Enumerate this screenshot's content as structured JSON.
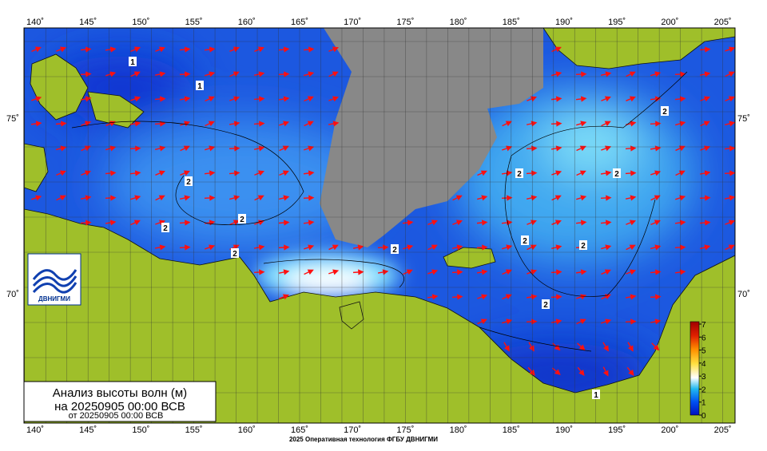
{
  "map": {
    "longitude_labels": [
      "140˚",
      "145˚",
      "150˚",
      "155˚",
      "160˚",
      "165˚",
      "170˚",
      "175˚",
      "180˚",
      "185˚",
      "190˚",
      "195˚",
      "200˚",
      "205˚"
    ],
    "latitude_labels": [
      "75˚",
      "70˚"
    ],
    "title": {
      "line1": "Анализ высоты волн (м)",
      "line2": "на 20250905 00:00 ВСВ",
      "line3": "от 20250905 00:00 ВСВ"
    },
    "logo": "ДВНИГМИ",
    "colorbar_ticks": [
      0,
      1,
      2,
      3,
      4,
      5,
      6,
      7
    ],
    "contour_labels": [
      "1",
      "1",
      "2",
      "2",
      "2",
      "2",
      "2",
      "2",
      "2",
      "2",
      "2",
      "2",
      "2",
      "1"
    ],
    "footer": "2025 Оперативная технология ФГБУ ДВНИГМИ"
  }
}
